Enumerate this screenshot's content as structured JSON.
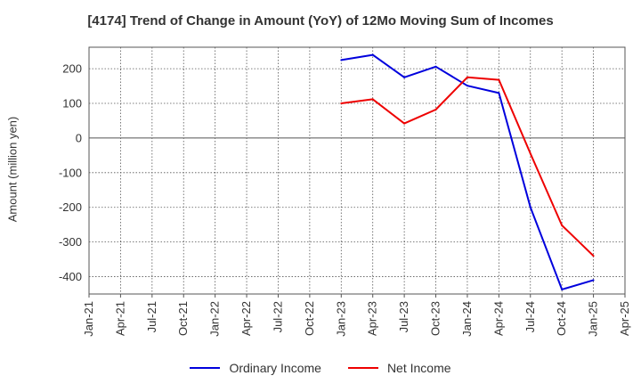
{
  "chart_data": {
    "type": "line",
    "title": "[4174]  Trend of Change in Amount (YoY) of 12Mo Moving Sum of Incomes",
    "xlabel": "",
    "ylabel": "Amount (million yen)",
    "categories": [
      "Jan-21",
      "Apr-21",
      "Jul-21",
      "Oct-21",
      "Jan-22",
      "Apr-22",
      "Jul-22",
      "Oct-22",
      "Jan-23",
      "Apr-23",
      "Jul-23",
      "Oct-23",
      "Jan-24",
      "Apr-24",
      "Jul-24",
      "Oct-24",
      "Jan-25",
      "Apr-25"
    ],
    "yticks": [
      200,
      100,
      0,
      -100,
      -200,
      -300,
      -400
    ],
    "ylim": [
      -450,
      262
    ],
    "grid": true,
    "legend_position": "bottom",
    "series": [
      {
        "name": "Ordinary Income",
        "color": "#0000dd",
        "values": [
          null,
          null,
          null,
          null,
          null,
          null,
          null,
          null,
          225,
          240,
          175,
          206,
          151,
          130,
          -200,
          -437,
          -410,
          null
        ]
      },
      {
        "name": "Net Income",
        "color": "#ee0000",
        "values": [
          null,
          null,
          null,
          null,
          null,
          null,
          null,
          null,
          100,
          112,
          42,
          82,
          175,
          168,
          -45,
          -252,
          -340,
          null
        ]
      }
    ]
  }
}
